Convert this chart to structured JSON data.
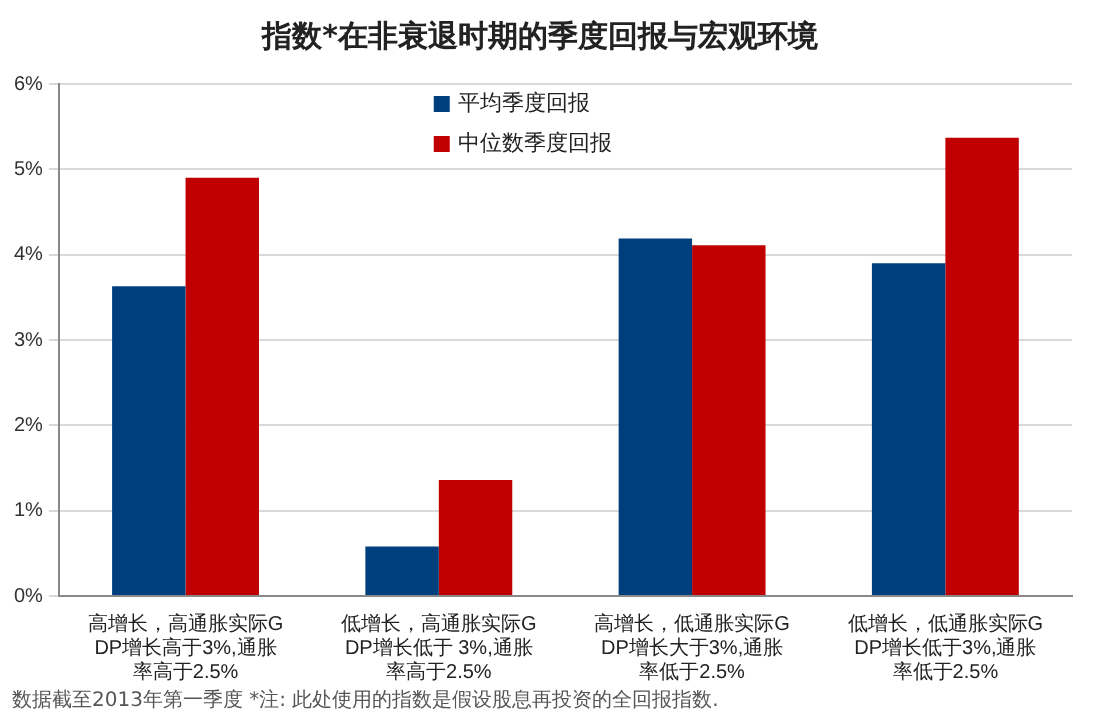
{
  "chart_data": {
    "type": "bar",
    "title": "指数*在非衰退时期的季度回报与宏观环境",
    "categories": [
      "高增长，高通胀实际GDP增长高于3%,通胀率高于2.5%",
      "低增长，高通胀实际GDP增长低于 3%,通胀率高于2.5%",
      "高增长，低通胀实际GDP增长大于3%,通胀率低于2.5%",
      "低增长，低通胀实际GDP增长低于3%,通胀率低于2.5%"
    ],
    "series": [
      {
        "name": "平均季度回报",
        "color": "#003f7d",
        "values": [
          3.63,
          0.58,
          4.19,
          3.9
        ]
      },
      {
        "name": "中位数季度回报",
        "color": "#c00000",
        "values": [
          4.9,
          1.36,
          4.11,
          5.37
        ]
      }
    ],
    "ylim": [
      0,
      6
    ],
    "yticks": [
      {
        "value": 0,
        "label": "0%"
      },
      {
        "value": 1,
        "label": "1%"
      },
      {
        "value": 2,
        "label": "2%"
      },
      {
        "value": 3,
        "label": "3%"
      },
      {
        "value": 4,
        "label": "4%"
      },
      {
        "value": 5,
        "label": "5%"
      },
      {
        "value": 6,
        "label": "6%"
      }
    ],
    "grid": "y",
    "legend": "top",
    "annotations": [
      "数据截至2013年第一季度 *注: 此处使用的指数是假设股息再投资的全回报指数."
    ]
  }
}
